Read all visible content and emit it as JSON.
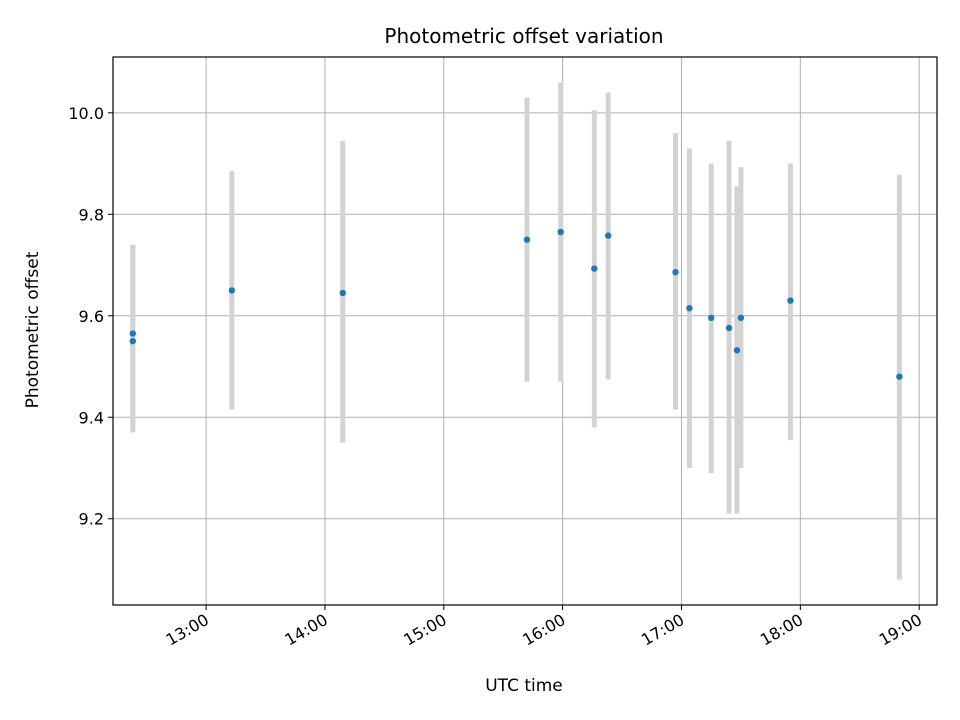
{
  "chart_data": {
    "type": "scatter",
    "title": "Photometric offset variation",
    "xlabel": "UTC time",
    "ylabel": "Photometric offset",
    "grid": true,
    "xlim": [
      "12:13",
      "19:09"
    ],
    "ylim": [
      9.03,
      10.11
    ],
    "xticks": [
      "13:00",
      "14:00",
      "15:00",
      "16:00",
      "17:00",
      "18:00",
      "19:00"
    ],
    "yticks": [
      "9.2",
      "9.4",
      "9.6",
      "9.8",
      "10.0"
    ],
    "colors": {
      "point": "#1f77b4",
      "errorbar": "#d3d3d3",
      "grid": "#b0b0b0"
    },
    "points": [
      {
        "x": "12:23",
        "y": 9.565,
        "err_low": 9.38,
        "err_high": 9.74
      },
      {
        "x": "12:23",
        "y": 9.55,
        "err_low": 9.37,
        "err_high": 9.74
      },
      {
        "x": "13:13",
        "y": 9.65,
        "err_low": 9.415,
        "err_high": 9.885
      },
      {
        "x": "14:09",
        "y": 9.645,
        "err_low": 9.35,
        "err_high": 9.945
      },
      {
        "x": "15:42",
        "y": 9.75,
        "err_low": 9.47,
        "err_high": 10.03
      },
      {
        "x": "15:59",
        "y": 9.765,
        "err_low": 9.47,
        "err_high": 10.06
      },
      {
        "x": "16:16",
        "y": 9.693,
        "err_low": 9.38,
        "err_high": 10.005
      },
      {
        "x": "16:23",
        "y": 9.758,
        "err_low": 9.475,
        "err_high": 10.04
      },
      {
        "x": "16:57",
        "y": 9.686,
        "err_low": 9.415,
        "err_high": 9.96
      },
      {
        "x": "17:04",
        "y": 9.615,
        "err_low": 9.3,
        "err_high": 9.93
      },
      {
        "x": "17:15",
        "y": 9.596,
        "err_low": 9.29,
        "err_high": 9.9
      },
      {
        "x": "17:24",
        "y": 9.576,
        "err_low": 9.21,
        "err_high": 9.945
      },
      {
        "x": "17:28",
        "y": 9.532,
        "err_low": 9.21,
        "err_high": 9.855
      },
      {
        "x": "17:30",
        "y": 9.596,
        "err_low": 9.3,
        "err_high": 9.893
      },
      {
        "x": "17:55",
        "y": 9.63,
        "err_low": 9.355,
        "err_high": 9.9
      },
      {
        "x": "18:50",
        "y": 9.48,
        "err_low": 9.08,
        "err_high": 9.878
      }
    ]
  }
}
